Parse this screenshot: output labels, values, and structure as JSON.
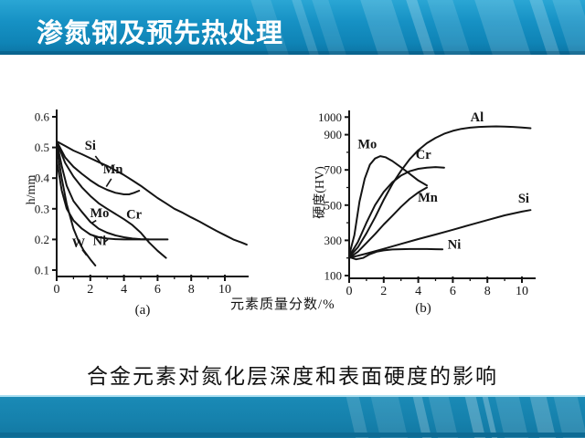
{
  "header": {
    "title": "渗氮钢及预先热处理"
  },
  "figure": {
    "x_axis_label": "元素质量分数/%",
    "caption": "合金元素对氮化层深度和表面硬度的影响"
  },
  "colors": {
    "header_blue": "#1691c4",
    "streak_light": "#5ec2e2",
    "footer_blue": "#1580ab",
    "ink": "#141414",
    "title_text": "#ffffff"
  },
  "chart_data": [
    {
      "type": "line",
      "id": "a",
      "caption": "(a)",
      "xlabel": "元素质量分数/%",
      "ylabel": "h/mm",
      "xlim": [
        0,
        11.4
      ],
      "ylim": [
        0.08,
        0.63
      ],
      "grid": false,
      "xticks": [
        {
          "v": 0,
          "label": "0"
        },
        {
          "v": 2,
          "label": "2"
        },
        {
          "v": 4,
          "label": "4"
        },
        {
          "v": 6,
          "label": "6"
        },
        {
          "v": 8,
          "label": "8"
        },
        {
          "v": 10,
          "label": "10"
        }
      ],
      "xticks_minor": [
        1,
        3,
        5,
        7,
        9
      ],
      "yticks": [
        {
          "v": 0.6,
          "label": "0.6"
        },
        {
          "v": 0.5,
          "label": "0.5"
        },
        {
          "v": 0.4,
          "label": "0.4"
        },
        {
          "v": 0.3,
          "label": "0.3"
        },
        {
          "v": 0.2,
          "label": "0.2"
        },
        {
          "v": 0.1,
          "label": "0.1"
        }
      ],
      "yticks_minor": [],
      "series": [
        {
          "name": "Si",
          "points": [
            [
              0,
              0.52
            ],
            [
              0.5,
              0.505
            ],
            [
              1,
              0.49
            ],
            [
              1.5,
              0.478
            ],
            [
              2,
              0.465
            ],
            [
              2.5,
              0.452
            ],
            [
              3,
              0.44
            ],
            [
              3.5,
              0.425
            ],
            [
              4,
              0.41
            ],
            [
              4.5,
              0.393
            ],
            [
              5,
              0.375
            ],
            [
              5.5,
              0.355
            ],
            [
              6,
              0.335
            ],
            [
              6.5,
              0.318
            ],
            [
              7,
              0.3
            ],
            [
              7.5,
              0.287
            ],
            [
              8,
              0.272
            ],
            [
              8.5,
              0.258
            ],
            [
              9,
              0.243
            ],
            [
              9.5,
              0.228
            ],
            [
              10,
              0.214
            ],
            [
              10.5,
              0.2
            ],
            [
              11,
              0.19
            ],
            [
              11.3,
              0.183
            ]
          ],
          "label": {
            "text": "Si",
            "x": 2.0,
            "y": 0.493,
            "anchor": "middle"
          },
          "leader": [
            [
              2.3,
              0.472
            ],
            [
              2.75,
              0.44
            ]
          ]
        },
        {
          "name": "Mn",
          "points": [
            [
              0,
              0.52
            ],
            [
              0.5,
              0.468
            ],
            [
              1,
              0.437
            ],
            [
              1.5,
              0.414
            ],
            [
              2,
              0.393
            ],
            [
              2.5,
              0.375
            ],
            [
              3,
              0.362
            ],
            [
              3.5,
              0.352
            ],
            [
              4,
              0.347
            ],
            [
              4.3,
              0.347
            ],
            [
              4.6,
              0.352
            ],
            [
              4.9,
              0.359
            ]
          ],
          "label": {
            "text": "Mn",
            "x": 3.35,
            "y": 0.415,
            "anchor": "middle"
          },
          "leader": [
            [
              3.25,
              0.398
            ],
            [
              2.95,
              0.372
            ]
          ]
        },
        {
          "name": "Cr",
          "points": [
            [
              0,
              0.52
            ],
            [
              0.5,
              0.45
            ],
            [
              1,
              0.405
            ],
            [
              1.5,
              0.37
            ],
            [
              2,
              0.342
            ],
            [
              2.5,
              0.318
            ],
            [
              3,
              0.3
            ],
            [
              3.5,
              0.283
            ],
            [
              4,
              0.266
            ],
            [
              4.5,
              0.247
            ],
            [
              5,
              0.222
            ],
            [
              5.5,
              0.19
            ],
            [
              6,
              0.163
            ],
            [
              6.5,
              0.14
            ]
          ],
          "label": {
            "text": "Cr",
            "x": 4.6,
            "y": 0.268,
            "anchor": "middle"
          }
        },
        {
          "name": "Mo",
          "points": [
            [
              0,
              0.52
            ],
            [
              0.3,
              0.44
            ],
            [
              0.6,
              0.375
            ],
            [
              1,
              0.325
            ],
            [
              1.5,
              0.29
            ],
            [
              2,
              0.257
            ],
            [
              2.5,
              0.235
            ],
            [
              3,
              0.222
            ],
            [
              3.5,
              0.213
            ],
            [
              4,
              0.207
            ],
            [
              4.5,
              0.203
            ],
            [
              5,
              0.201
            ],
            [
              5.5,
              0.2
            ]
          ],
          "label": {
            "text": "Mo",
            "x": 2.55,
            "y": 0.272,
            "anchor": "middle"
          },
          "leader": [
            [
              2.35,
              0.262
            ],
            [
              2.08,
              0.253
            ]
          ]
        },
        {
          "name": "Ni",
          "points": [
            [
              0,
              0.46
            ],
            [
              0.3,
              0.36
            ],
            [
              0.6,
              0.3
            ],
            [
              1,
              0.262
            ],
            [
              1.5,
              0.235
            ],
            [
              2,
              0.216
            ],
            [
              2.5,
              0.207
            ],
            [
              3,
              0.203
            ],
            [
              3.5,
              0.201
            ],
            [
              4,
              0.2
            ],
            [
              5,
              0.2
            ],
            [
              6,
              0.2
            ],
            [
              6.6,
              0.2
            ]
          ],
          "label": {
            "text": "Ni",
            "x": 2.55,
            "y": 0.182,
            "anchor": "middle"
          },
          "leader": [
            [
              2.85,
              0.192
            ],
            [
              3.05,
              0.2
            ]
          ]
        },
        {
          "name": "W",
          "points": [
            [
              0,
              0.5
            ],
            [
              0.3,
              0.4
            ],
            [
              0.6,
              0.315
            ],
            [
              1,
              0.235
            ],
            [
              1.3,
              0.195
            ],
            [
              1.6,
              0.165
            ],
            [
              2,
              0.135
            ],
            [
              2.3,
              0.115
            ]
          ],
          "label": {
            "text": "W",
            "x": 1.3,
            "y": 0.175,
            "anchor": "middle"
          },
          "leader": [
            [
              1.52,
              0.167
            ],
            [
              1.78,
              0.148
            ]
          ]
        }
      ]
    },
    {
      "type": "line",
      "id": "b",
      "caption": "(b)",
      "xlabel": "元素质量分数/%",
      "ylabel": "硬度(HV)",
      "xlim": [
        0,
        10.9
      ],
      "ylim": [
        88,
        1010
      ],
      "grid": false,
      "xticks": [
        {
          "v": 0,
          "label": "0"
        },
        {
          "v": 2,
          "label": "2"
        },
        {
          "v": 4,
          "label": "4"
        },
        {
          "v": 6,
          "label": "6"
        },
        {
          "v": 8,
          "label": "8"
        },
        {
          "v": 10,
          "label": "10"
        }
      ],
      "xticks_minor": [
        1,
        3,
        5,
        7,
        9
      ],
      "yticks": [
        {
          "v": 1000,
          "label": "1000"
        },
        {
          "v": 900,
          "label": "900"
        },
        {
          "v": 700,
          "label": "700"
        },
        {
          "v": 500,
          "label": "500"
        },
        {
          "v": 300,
          "label": "300"
        },
        {
          "v": 100,
          "label": "100"
        }
      ],
      "yticks_minor": [
        200,
        400,
        600,
        800
      ],
      "series": [
        {
          "name": "Al",
          "points": [
            [
              0,
              205
            ],
            [
              0.5,
              260
            ],
            [
              1,
              340
            ],
            [
              1.5,
              430
            ],
            [
              2,
              530
            ],
            [
              2.5,
              620
            ],
            [
              3,
              695
            ],
            [
              3.5,
              760
            ],
            [
              4,
              812
            ],
            [
              4.5,
              852
            ],
            [
              5,
              882
            ],
            [
              5.5,
              905
            ],
            [
              6,
              922
            ],
            [
              6.5,
              933
            ],
            [
              7,
              940
            ],
            [
              7.5,
              944
            ],
            [
              8,
              946
            ],
            [
              8.5,
              947
            ],
            [
              9,
              946
            ],
            [
              9.5,
              944
            ],
            [
              10,
              941
            ],
            [
              10.5,
              937
            ]
          ],
          "label": {
            "text": "Al",
            "x": 7.4,
            "y": 975,
            "anchor": "middle"
          }
        },
        {
          "name": "Mo",
          "points": [
            [
              0,
              215
            ],
            [
              0.3,
              330
            ],
            [
              0.6,
              520
            ],
            [
              0.9,
              650
            ],
            [
              1.2,
              730
            ],
            [
              1.5,
              765
            ],
            [
              1.8,
              778
            ],
            [
              2.1,
              772
            ],
            [
              2.5,
              750
            ],
            [
              3,
              715
            ],
            [
              3.5,
              678
            ],
            [
              4,
              640
            ],
            [
              4.5,
              612
            ]
          ],
          "label": {
            "text": "Mo",
            "x": 1.05,
            "y": 822,
            "anchor": "middle"
          }
        },
        {
          "name": "Cr",
          "points": [
            [
              0,
              210
            ],
            [
              0.5,
              290
            ],
            [
              1,
              400
            ],
            [
              1.5,
              500
            ],
            [
              2,
              575
            ],
            [
              2.5,
              630
            ],
            [
              3,
              668
            ],
            [
              3.5,
              692
            ],
            [
              4,
              706
            ],
            [
              4.5,
              713
            ],
            [
              5,
              716
            ],
            [
              5.5,
              713
            ]
          ],
          "label": {
            "text": "Cr",
            "x": 4.3,
            "y": 762,
            "anchor": "middle"
          }
        },
        {
          "name": "Mn",
          "points": [
            [
              0,
              200
            ],
            [
              0.5,
              235
            ],
            [
              1,
              285
            ],
            [
              1.5,
              335
            ],
            [
              2,
              390
            ],
            [
              2.5,
              440
            ],
            [
              3,
              490
            ],
            [
              3.5,
              535
            ],
            [
              4,
              572
            ],
            [
              4.5,
              600
            ]
          ],
          "label": {
            "text": "Mn",
            "x": 4.55,
            "y": 520,
            "anchor": "middle"
          }
        },
        {
          "name": "Si",
          "points": [
            [
              0,
              200
            ],
            [
              1,
              225
            ],
            [
              2,
              252
            ],
            [
              3,
              280
            ],
            [
              4,
              307
            ],
            [
              5,
              333
            ],
            [
              6,
              360
            ],
            [
              7,
              388
            ],
            [
              8,
              415
            ],
            [
              9,
              442
            ],
            [
              10,
              463
            ],
            [
              10.5,
              472
            ]
          ],
          "label": {
            "text": "Si",
            "x": 10.1,
            "y": 515,
            "anchor": "middle"
          }
        },
        {
          "name": "Ni",
          "points": [
            [
              0,
              205
            ],
            [
              0.4,
              192
            ],
            [
              0.8,
              200
            ],
            [
              1.2,
              222
            ],
            [
              1.6,
              236
            ],
            [
              2,
              243
            ],
            [
              2.5,
              248
            ],
            [
              3,
              250
            ],
            [
              3.5,
              251
            ],
            [
              4,
              251
            ],
            [
              4.5,
              251
            ],
            [
              5,
              250
            ],
            [
              5.4,
              249
            ]
          ],
          "label": {
            "text": "Ni",
            "x": 5.7,
            "y": 252,
            "anchor": "start"
          }
        }
      ]
    }
  ]
}
